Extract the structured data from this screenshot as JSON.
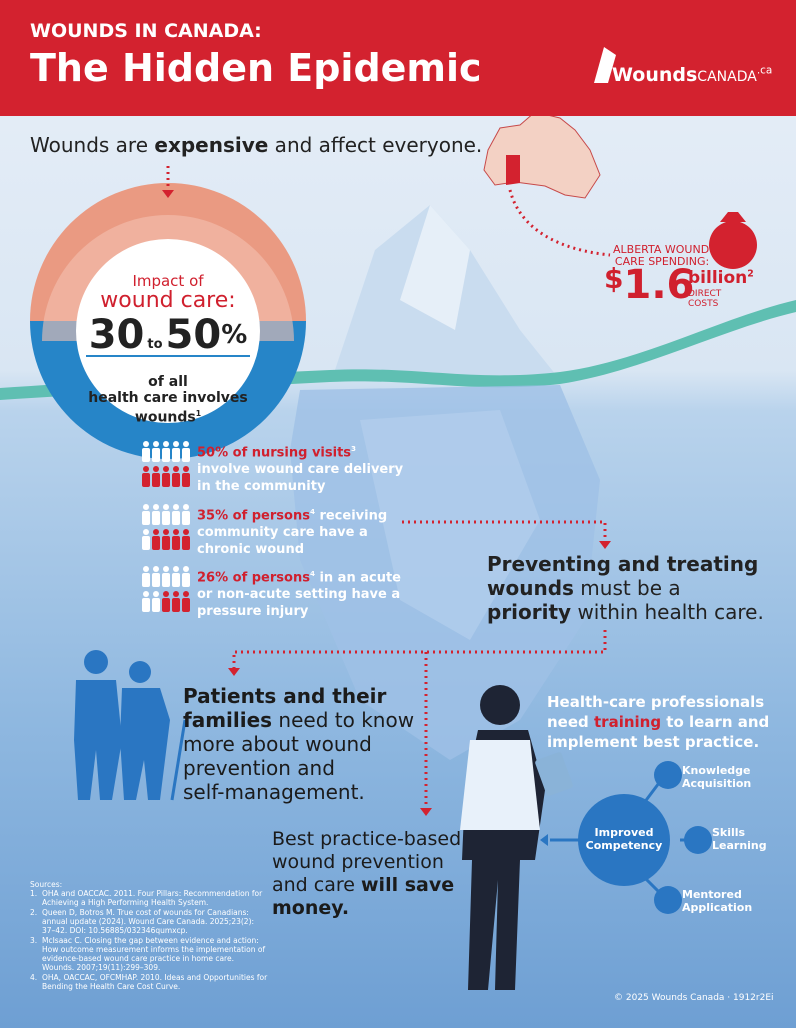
{
  "header": {
    "subtitle": "WOUNDS IN CANADA:",
    "title": "The Hidden Epidemic",
    "logo": "Wounds",
    "logo_suffix": "CANADA",
    "logo_domain": ".ca"
  },
  "intro": [
    "Wounds are ",
    "expensive",
    " and affect everyone."
  ],
  "alberta": {
    "label_1": "ALBERTA WOUND",
    "label_2": "CARE SPENDING:",
    "currency": "$",
    "amount": "1.6",
    "unit": "billion",
    "ref": "2",
    "note_1": "DIRECT",
    "note_2": "COSTS"
  },
  "impact": {
    "label_1": "Impact of",
    "label_2": "wound care:",
    "low": "30",
    "to": "to",
    "high": "50",
    "percent": "%",
    "line_1": "of all",
    "line_2": "health care involves",
    "line_3": "wounds",
    "ref": "1"
  },
  "stats": [
    {
      "highlight": "50% of nursing visits",
      "ref": "3",
      "lines": [
        "involve wound care delivery",
        "in the community"
      ]
    },
    {
      "highlight": "35% of persons",
      "ref": "4",
      "rest": " receiving",
      "lines": [
        "community care have a",
        "chronic wound"
      ]
    },
    {
      "highlight": "26% of persons",
      "ref": "4",
      "rest": " in an acute",
      "lines": [
        "or non-acute setting have a",
        "pressure injury"
      ]
    }
  ],
  "priority": [
    "Preventing and treating",
    "wounds",
    " must be a",
    "priority",
    " within health care."
  ],
  "patients": [
    "Patients and their",
    "families",
    " need to know",
    "more about wound",
    "prevention and",
    "self-management."
  ],
  "professionals": [
    "Health-care professionals",
    "need ",
    "training",
    " to learn and",
    "implement best practice."
  ],
  "competency": {
    "center_1": "Improved",
    "center_2": "Competency",
    "nodes": [
      [
        "Knowledge",
        "Acquisition"
      ],
      [
        "Skills",
        "Learning"
      ],
      [
        "Mentored",
        "Application"
      ]
    ]
  },
  "savings": [
    "Best practice-based",
    "wound prevention",
    "and care ",
    "will save",
    "money."
  ],
  "sources": {
    "title": "Sources:",
    "items": [
      {
        "number": "1.",
        "text": "OHA and OACCAC. 2011. Four Pillars: Recommendation for Achieving a High Performing Health System."
      },
      {
        "number": "2.",
        "text": "Queen D, Botros M. True cost of wounds for Canadians: annual update (2024). Wound Care Canada. 2025;23(2): 37–42. DOI: 10.56885/032346qumxcp."
      },
      {
        "number": "3.",
        "text": "McIsaac C. Closing the gap between evidence and action: How outcome measurement informs the implementation of evidence-based wound care practice in home care. Wounds. 2007;19(11):299–309."
      },
      {
        "number": "4.",
        "text": "OHA, OACCAC, OFCMHAP. 2010. Ideas and Opportunities for Bending the Health Care Cost Curve."
      }
    ]
  },
  "footer": "© 2025 Wounds Canada · 1912r2Ei"
}
